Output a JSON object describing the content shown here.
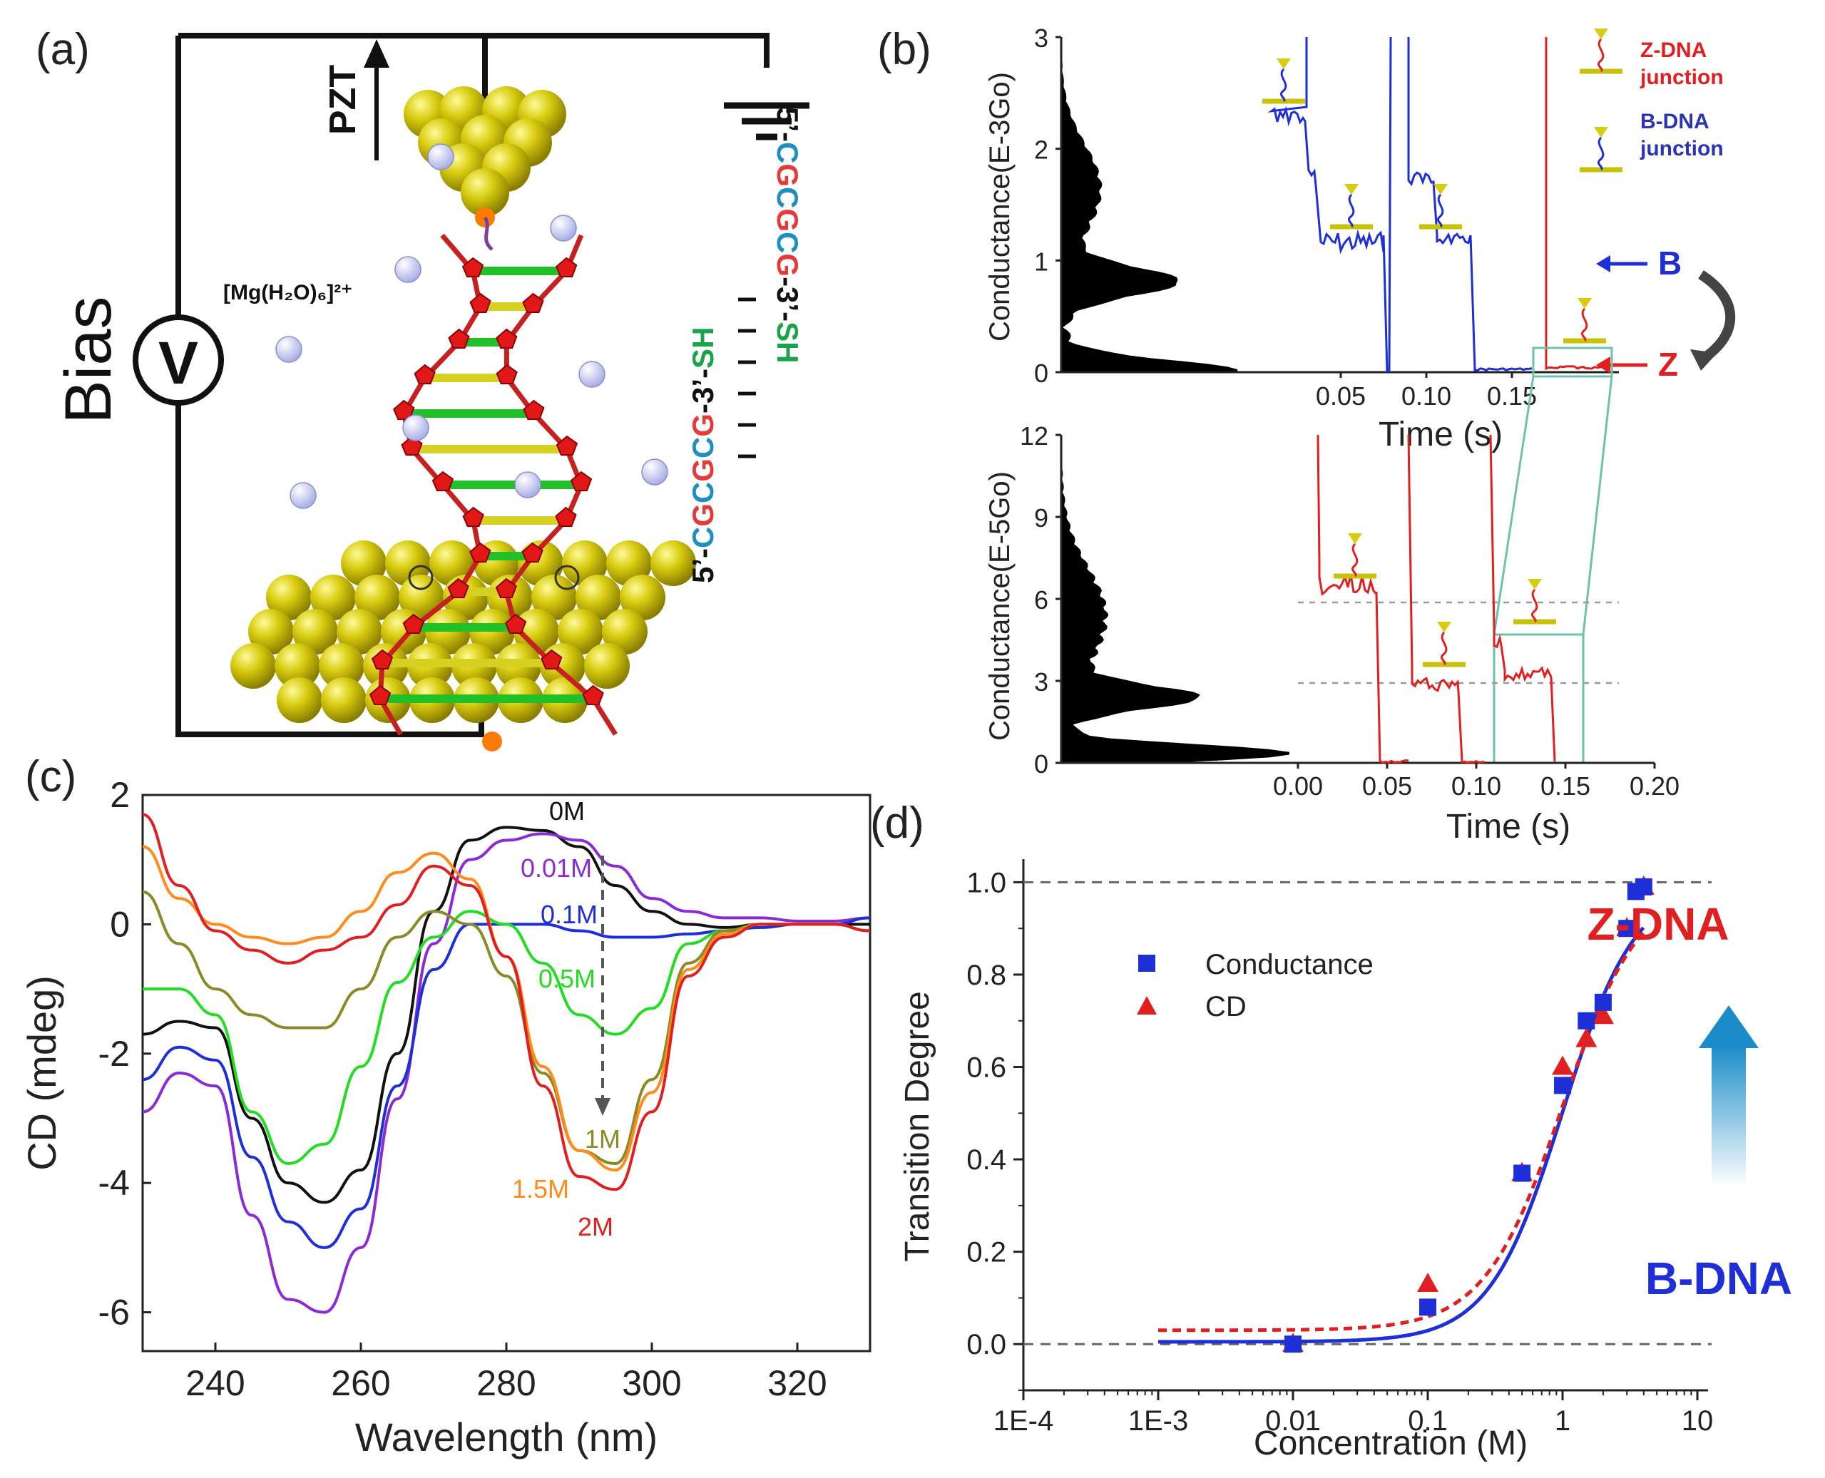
{
  "panels": {
    "a": "(a)",
    "b": "(b)",
    "c": "(c)",
    "d": "(d)"
  },
  "panel_a": {
    "bias_label": "Bias",
    "voltmeter_symbol": "V",
    "pzt_label": "PZT",
    "ion_label": "[Mg(H₂O)₆]²⁺",
    "strand_top": [
      {
        "t": "5’-",
        "c": "#111111"
      },
      {
        "t": "C",
        "c": "#1f8fc0"
      },
      {
        "t": "G",
        "c": "#e53a3a"
      },
      {
        "t": "C",
        "c": "#1f8fc0"
      },
      {
        "t": "G",
        "c": "#e53a3a"
      },
      {
        "t": "C",
        "c": "#1f8fc0"
      },
      {
        "t": "G",
        "c": "#e53a3a"
      },
      {
        "t": "-3’-",
        "c": "#111111"
      },
      {
        "t": "SH",
        "c": "#1aa34a"
      }
    ],
    "strand_bottom": [
      {
        "t": "5’-",
        "c": "#111111"
      },
      {
        "t": "C",
        "c": "#1f8fc0"
      },
      {
        "t": "G",
        "c": "#e53a3a"
      },
      {
        "t": "C",
        "c": "#1f8fc0"
      },
      {
        "t": "G",
        "c": "#e53a3a"
      },
      {
        "t": "C",
        "c": "#1f8fc0"
      },
      {
        "t": "G",
        "c": "#e53a3a"
      },
      {
        "t": "-3’-",
        "c": "#111111"
      },
      {
        "t": "SH",
        "c": "#1aa34a"
      }
    ]
  },
  "panel_b": {
    "top": {
      "ylabel": "Conductance(E-3Go)",
      "yticks": [
        "0",
        "1",
        "2",
        "3"
      ],
      "xticks": [
        "0.05",
        "0.10",
        "0.15"
      ],
      "xlabel": "Time (s)",
      "legend_z": "Z-DNA junction",
      "legend_z_l1": "Z-DNA",
      "legend_z_l2": "junction",
      "legend_b_l1": "B-DNA",
      "legend_b_l2": "junction",
      "arrow_b": "B",
      "arrow_z": "Z",
      "colors": {
        "b": "#1e2fd8",
        "z": "#e02020"
      }
    },
    "bottom": {
      "ylabel": "Conductance(E-5Go)",
      "yticks": [
        "0",
        "3",
        "6",
        "9",
        "12"
      ],
      "xticks": [
        "0.00",
        "0.05",
        "0.10",
        "0.15",
        "0.20"
      ],
      "xlabel": "Time (s)"
    }
  },
  "chart_data": [
    {
      "type": "line",
      "panel": "c",
      "xlabel": "Wavelength (nm)",
      "ylabel": "CD (mdeg)",
      "xlim": [
        230,
        330
      ],
      "ylim": [
        -6.6,
        2
      ],
      "xticks": [
        240,
        260,
        280,
        300,
        320
      ],
      "yticks": [
        2,
        0,
        -2,
        -4,
        -6
      ],
      "x": [
        230,
        235,
        240,
        245,
        250,
        255,
        260,
        265,
        270,
        275,
        280,
        285,
        290,
        295,
        300,
        305,
        310,
        315,
        320,
        325,
        330
      ],
      "series": [
        {
          "name": "0M",
          "color": "#111111",
          "values": [
            -1.7,
            -1.5,
            -1.6,
            -3.0,
            -4.0,
            -4.3,
            -3.8,
            -2.0,
            0.2,
            1.3,
            1.5,
            1.45,
            1.2,
            0.6,
            0.2,
            0.0,
            -0.05,
            0.0,
            0.0,
            0.0,
            0.0
          ]
        },
        {
          "name": "0.01M",
          "color": "#8a2bd6",
          "values": [
            -2.9,
            -2.3,
            -2.5,
            -4.5,
            -5.8,
            -6.0,
            -5.0,
            -2.7,
            -0.3,
            1.0,
            1.3,
            1.4,
            1.3,
            0.9,
            0.4,
            0.2,
            0.1,
            0.1,
            0.05,
            0.05,
            0.1
          ]
        },
        {
          "name": "0.1M",
          "color": "#1e2fd8",
          "values": [
            -2.4,
            -1.9,
            -2.1,
            -3.6,
            -4.6,
            -5.0,
            -4.4,
            -2.5,
            -0.7,
            0.0,
            0.0,
            0.0,
            -0.1,
            -0.2,
            -0.2,
            -0.15,
            -0.1,
            -0.05,
            0.0,
            0.0,
            0.1
          ]
        },
        {
          "name": "0.5M",
          "color": "#22dd22",
          "values": [
            -1.0,
            -1.0,
            -1.4,
            -2.9,
            -3.7,
            -3.4,
            -2.2,
            -0.9,
            -0.2,
            0.2,
            0.0,
            -0.6,
            -1.4,
            -1.7,
            -1.3,
            -0.3,
            -0.1,
            0.0,
            0.0,
            0.0,
            -0.1
          ]
        },
        {
          "name": "1M",
          "color": "#8a8a28",
          "values": [
            0.5,
            -0.3,
            -1.0,
            -1.4,
            -1.6,
            -1.6,
            -1.0,
            -0.2,
            0.2,
            0.0,
            -0.8,
            -2.3,
            -3.5,
            -3.7,
            -2.4,
            -0.6,
            -0.1,
            0.0,
            0.0,
            0.0,
            -0.1
          ]
        },
        {
          "name": "1.5M",
          "color": "#ff8c1a",
          "values": [
            1.2,
            0.4,
            0.0,
            -0.2,
            -0.3,
            -0.2,
            0.2,
            0.8,
            1.1,
            0.7,
            -0.5,
            -2.2,
            -3.5,
            -3.8,
            -2.6,
            -0.7,
            -0.15,
            0.0,
            0.0,
            0.0,
            -0.1
          ]
        },
        {
          "name": "2M",
          "color": "#e02020",
          "values": [
            1.7,
            0.6,
            -0.1,
            -0.4,
            -0.6,
            -0.4,
            -0.2,
            0.3,
            0.9,
            0.6,
            -0.5,
            -2.5,
            -3.9,
            -4.1,
            -2.9,
            -0.8,
            -0.2,
            0.0,
            0.0,
            0.0,
            -0.1
          ]
        }
      ],
      "annotations": [
        "0M",
        "0.01M",
        "0.1M",
        "0.5M",
        "1M",
        "1.5M",
        "2M"
      ]
    },
    {
      "type": "scatter",
      "panel": "d",
      "xlabel": "Concentration (M)",
      "ylabel": "Transition Degree",
      "xscale": "log",
      "xlim": [
        0.0001,
        12
      ],
      "ylim": [
        -0.1,
        1.05
      ],
      "xticks": [
        "1E-4",
        "1E-3",
        "0.01",
        "0.1",
        "1",
        "10"
      ],
      "yticks": [
        "0.0",
        "0.2",
        "0.4",
        "0.6",
        "0.8",
        "1.0"
      ],
      "series": [
        {
          "name": "Conductance",
          "marker": "square",
          "color": "#1e2fd8",
          "x": [
            0.01,
            0.1,
            0.5,
            1.0,
            1.5,
            2.0,
            3.0,
            3.5,
            4.0
          ],
          "y": [
            0.0,
            0.08,
            0.37,
            0.56,
            0.7,
            0.74,
            0.9,
            0.98,
            0.99
          ]
        },
        {
          "name": "CD",
          "marker": "triangle",
          "color": "#e02020",
          "x": [
            0.01,
            0.1,
            0.5,
            1.0,
            1.5,
            2.0,
            3.0,
            4.0
          ],
          "y": [
            0.0,
            0.13,
            0.37,
            0.6,
            0.66,
            0.71,
            0.9,
            0.99
          ]
        }
      ],
      "labels": {
        "top": "Z-DNA",
        "bottom": "B-DNA"
      },
      "label_colors": {
        "top": "#e02020",
        "bottom": "#1e2fd8"
      }
    }
  ]
}
